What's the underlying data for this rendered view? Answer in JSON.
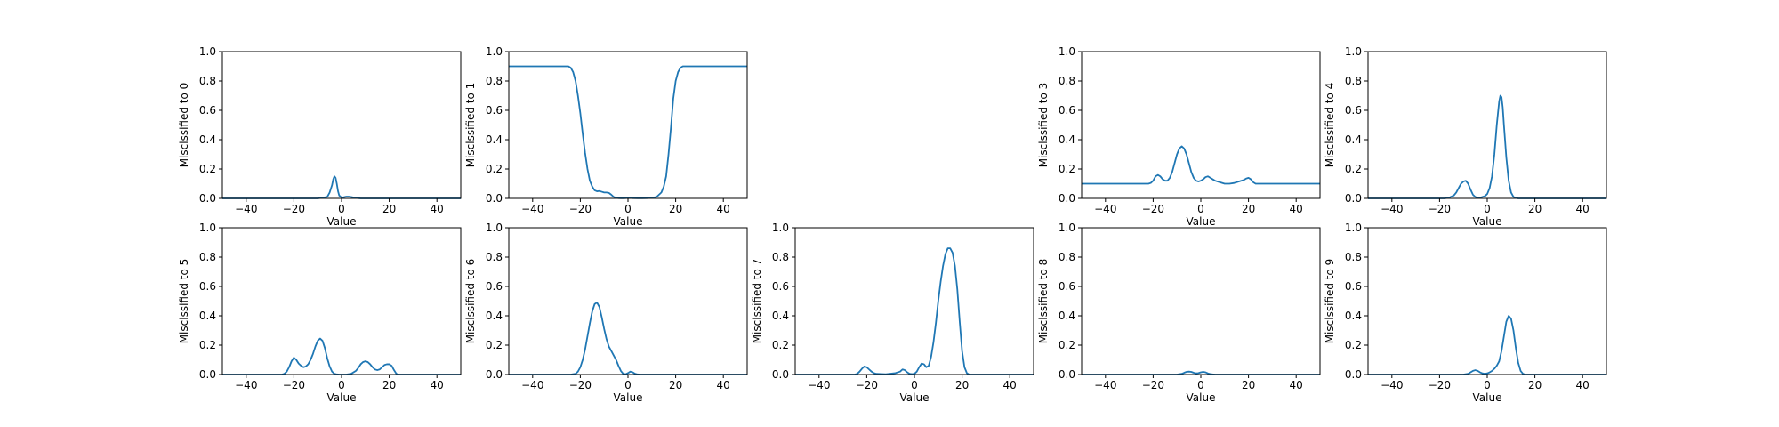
{
  "figure": {
    "background": "#ffffff",
    "line_color": "#1f77b4"
  },
  "chart_data": [
    {
      "type": "line",
      "xlabel": "Value",
      "ylabel": "Misclssified to 0",
      "xlim": [
        -50,
        50
      ],
      "ylim": [
        0,
        1
      ],
      "xticks": [
        -40,
        -20,
        0,
        20,
        40
      ],
      "xtick_labels": [
        "−40",
        "−20",
        "0",
        "20",
        "40"
      ],
      "yticks": [
        0,
        0.2,
        0.4,
        0.6,
        0.8,
        1.0
      ],
      "ytick_labels": [
        "0.0",
        "0.2",
        "0.4",
        "0.6",
        "0.8",
        "1.0"
      ],
      "series": [
        {
          "x": [
            -50,
            -10,
            -6,
            -5,
            -4,
            -3.5,
            -3,
            -2.5,
            -2,
            -1.5,
            -1,
            0,
            1,
            2,
            3,
            4,
            5,
            6,
            8,
            50
          ],
          "y": [
            0,
            0,
            0.01,
            0.04,
            0.09,
            0.13,
            0.15,
            0.14,
            0.1,
            0.05,
            0.02,
            0.005,
            0.008,
            0.012,
            0.012,
            0.01,
            0.006,
            0.003,
            0,
            0
          ]
        }
      ]
    },
    {
      "type": "line",
      "xlabel": "Value",
      "ylabel": "Misclssified to 1",
      "xlim": [
        -50,
        50
      ],
      "ylim": [
        0,
        1
      ],
      "xticks": [
        -40,
        -20,
        0,
        20,
        40
      ],
      "xtick_labels": [
        "−40",
        "−20",
        "0",
        "20",
        "40"
      ],
      "yticks": [
        0,
        0.2,
        0.4,
        0.6,
        0.8,
        1.0
      ],
      "ytick_labels": [
        "0.0",
        "0.2",
        "0.4",
        "0.6",
        "0.8",
        "1.0"
      ],
      "series": [
        {
          "x": [
            -50,
            -25,
            -24,
            -23,
            -22,
            -21,
            -20,
            -19,
            -18,
            -17,
            -16,
            -15,
            -14,
            -13,
            -12,
            -11,
            -10,
            -9,
            -8,
            -7,
            -6,
            -5,
            -4,
            -3,
            -2,
            -1,
            0,
            2,
            4,
            6,
            8,
            10,
            12,
            14,
            15,
            16,
            17,
            18,
            19,
            20,
            21,
            22,
            23,
            24,
            25,
            50
          ],
          "y": [
            0.9,
            0.9,
            0.89,
            0.86,
            0.8,
            0.7,
            0.58,
            0.44,
            0.31,
            0.2,
            0.12,
            0.08,
            0.055,
            0.048,
            0.05,
            0.045,
            0.04,
            0.04,
            0.037,
            0.025,
            0.01,
            0.004,
            0.002,
            0.001,
            0.001,
            0.002,
            0.004,
            0.002,
            0.001,
            0.001,
            0.002,
            0.004,
            0.01,
            0.04,
            0.08,
            0.15,
            0.3,
            0.48,
            0.68,
            0.8,
            0.86,
            0.89,
            0.9,
            0.9,
            0.9,
            0.9
          ]
        }
      ]
    },
    null,
    {
      "type": "line",
      "xlabel": "Value",
      "ylabel": "Misclssified to 3",
      "xlim": [
        -50,
        50
      ],
      "ylim": [
        0,
        1
      ],
      "xticks": [
        -40,
        -20,
        0,
        20,
        40
      ],
      "xtick_labels": [
        "−40",
        "−20",
        "0",
        "20",
        "40"
      ],
      "yticks": [
        0,
        0.2,
        0.4,
        0.6,
        0.8,
        1.0
      ],
      "ytick_labels": [
        "0.0",
        "0.2",
        "0.4",
        "0.6",
        "0.8",
        "1.0"
      ],
      "series": [
        {
          "x": [
            -50,
            -22,
            -21,
            -20,
            -19,
            -18,
            -17,
            -16,
            -15,
            -14,
            -13,
            -12,
            -11,
            -10,
            -9,
            -8,
            -7,
            -6,
            -5,
            -4,
            -3,
            -2,
            -1,
            0,
            1,
            2,
            3,
            4,
            5,
            6,
            8,
            10,
            12,
            14,
            16,
            18,
            19,
            20,
            21,
            22,
            23,
            50
          ],
          "y": [
            0.1,
            0.1,
            0.105,
            0.12,
            0.15,
            0.16,
            0.15,
            0.13,
            0.12,
            0.12,
            0.14,
            0.18,
            0.24,
            0.3,
            0.34,
            0.355,
            0.34,
            0.3,
            0.24,
            0.18,
            0.14,
            0.12,
            0.115,
            0.12,
            0.13,
            0.145,
            0.15,
            0.14,
            0.13,
            0.12,
            0.11,
            0.1,
            0.1,
            0.105,
            0.115,
            0.125,
            0.135,
            0.14,
            0.13,
            0.11,
            0.1,
            0.1
          ]
        }
      ]
    },
    {
      "type": "line",
      "xlabel": "Value",
      "ylabel": "Misclssified to 4",
      "xlim": [
        -50,
        50
      ],
      "ylim": [
        0,
        1
      ],
      "xticks": [
        -40,
        -20,
        0,
        20,
        40
      ],
      "xtick_labels": [
        "−40",
        "−20",
        "0",
        "20",
        "40"
      ],
      "yticks": [
        0,
        0.2,
        0.4,
        0.6,
        0.8,
        1.0
      ],
      "ytick_labels": [
        "0.0",
        "0.2",
        "0.4",
        "0.6",
        "0.8",
        "1.0"
      ],
      "series": [
        {
          "x": [
            -50,
            -18,
            -16,
            -14,
            -13,
            -12,
            -11,
            -10,
            -9,
            -8,
            -7,
            -6,
            -5,
            -4,
            -3,
            -2,
            -1,
            0,
            1,
            2,
            3,
            4,
            5,
            5.5,
            6,
            6.5,
            7,
            8,
            9,
            10,
            11,
            12,
            13,
            50
          ],
          "y": [
            0,
            0,
            0.005,
            0.02,
            0.04,
            0.07,
            0.1,
            0.115,
            0.12,
            0.1,
            0.06,
            0.025,
            0.01,
            0.005,
            0.005,
            0.01,
            0.015,
            0.03,
            0.07,
            0.15,
            0.3,
            0.5,
            0.66,
            0.7,
            0.69,
            0.62,
            0.5,
            0.28,
            0.12,
            0.04,
            0.01,
            0.003,
            0,
            0
          ]
        }
      ]
    },
    {
      "type": "line",
      "xlabel": "Value",
      "ylabel": "Misclssified to 5",
      "xlim": [
        -50,
        50
      ],
      "ylim": [
        0,
        1
      ],
      "xticks": [
        -40,
        -20,
        0,
        20,
        40
      ],
      "xtick_labels": [
        "−40",
        "−20",
        "0",
        "20",
        "40"
      ],
      "yticks": [
        0,
        0.2,
        0.4,
        0.6,
        0.8,
        1.0
      ],
      "ytick_labels": [
        "0.0",
        "0.2",
        "0.4",
        "0.6",
        "0.8",
        "1.0"
      ],
      "series": [
        {
          "x": [
            -50,
            -25,
            -24,
            -23,
            -22,
            -21,
            -20,
            -19,
            -18,
            -17,
            -16,
            -15,
            -14,
            -13,
            -12,
            -11,
            -10,
            -9,
            -8,
            -7,
            -6,
            -5,
            -4,
            -3,
            -2,
            -1,
            0,
            2,
            4,
            6,
            7,
            8,
            9,
            10,
            11,
            12,
            13,
            14,
            15,
            16,
            17,
            18,
            19,
            20,
            21,
            22,
            23,
            24,
            50
          ],
          "y": [
            0,
            0,
            0.005,
            0.02,
            0.05,
            0.09,
            0.115,
            0.1,
            0.075,
            0.06,
            0.05,
            0.055,
            0.07,
            0.1,
            0.14,
            0.19,
            0.23,
            0.245,
            0.23,
            0.18,
            0.11,
            0.055,
            0.02,
            0.005,
            0.001,
            0,
            0,
            0,
            0.005,
            0.025,
            0.045,
            0.07,
            0.085,
            0.09,
            0.085,
            0.07,
            0.05,
            0.035,
            0.03,
            0.035,
            0.05,
            0.065,
            0.07,
            0.07,
            0.06,
            0.03,
            0.005,
            0,
            0
          ]
        }
      ]
    },
    {
      "type": "line",
      "xlabel": "Value",
      "ylabel": "Misclssified to 6",
      "xlim": [
        -50,
        50
      ],
      "ylim": [
        0,
        1
      ],
      "xticks": [
        -40,
        -20,
        0,
        20,
        40
      ],
      "xtick_labels": [
        "−40",
        "−20",
        "0",
        "20",
        "40"
      ],
      "yticks": [
        0,
        0.2,
        0.4,
        0.6,
        0.8,
        1.0
      ],
      "ytick_labels": [
        "0.0",
        "0.2",
        "0.4",
        "0.6",
        "0.8",
        "1.0"
      ],
      "series": [
        {
          "x": [
            -50,
            -24,
            -22,
            -21,
            -20,
            -19,
            -18,
            -17,
            -16,
            -15,
            -14,
            -13,
            -12,
            -11,
            -10,
            -9,
            -8,
            -7,
            -6,
            -5,
            -4,
            -3,
            -2,
            -1,
            0,
            1,
            2,
            3,
            4,
            5,
            50
          ],
          "y": [
            0,
            0,
            0.005,
            0.02,
            0.05,
            0.1,
            0.17,
            0.26,
            0.35,
            0.43,
            0.48,
            0.49,
            0.46,
            0.39,
            0.31,
            0.24,
            0.19,
            0.16,
            0.13,
            0.1,
            0.06,
            0.025,
            0.005,
            0.002,
            0.01,
            0.02,
            0.015,
            0.005,
            0.001,
            0,
            0
          ]
        }
      ]
    },
    {
      "type": "line",
      "xlabel": "Value",
      "ylabel": "Misclssified to 7",
      "xlim": [
        -50,
        50
      ],
      "ylim": [
        0,
        1
      ],
      "xticks": [
        -40,
        -20,
        0,
        20,
        40
      ],
      "xtick_labels": [
        "−40",
        "−20",
        "0",
        "20",
        "40"
      ],
      "yticks": [
        0,
        0.2,
        0.4,
        0.6,
        0.8,
        1.0
      ],
      "ytick_labels": [
        "0.0",
        "0.2",
        "0.4",
        "0.6",
        "0.8",
        "1.0"
      ],
      "series": [
        {
          "x": [
            -50,
            -25,
            -24,
            -23,
            -22,
            -21,
            -20,
            -19,
            -18,
            -17,
            -16,
            -12,
            -8,
            -6,
            -5,
            -4,
            -3,
            -2,
            -1,
            0,
            1,
            2,
            3,
            4,
            5,
            6,
            7,
            8,
            9,
            10,
            11,
            12,
            13,
            14,
            15,
            16,
            17,
            18,
            19,
            20,
            21,
            22,
            23,
            50
          ],
          "y": [
            0,
            0,
            0.005,
            0.02,
            0.04,
            0.055,
            0.05,
            0.035,
            0.02,
            0.01,
            0.005,
            0.002,
            0.01,
            0.02,
            0.035,
            0.03,
            0.015,
            0.005,
            0.003,
            0.005,
            0.02,
            0.05,
            0.075,
            0.07,
            0.05,
            0.06,
            0.12,
            0.22,
            0.35,
            0.5,
            0.63,
            0.74,
            0.82,
            0.86,
            0.86,
            0.83,
            0.74,
            0.58,
            0.36,
            0.16,
            0.05,
            0.01,
            0,
            0
          ]
        }
      ]
    },
    {
      "type": "line",
      "xlabel": "Value",
      "ylabel": "Misclssified to 8",
      "xlim": [
        -50,
        50
      ],
      "ylim": [
        0,
        1
      ],
      "xticks": [
        -40,
        -20,
        0,
        20,
        40
      ],
      "xtick_labels": [
        "−40",
        "−20",
        "0",
        "20",
        "40"
      ],
      "yticks": [
        0,
        0.2,
        0.4,
        0.6,
        0.8,
        1.0
      ],
      "ytick_labels": [
        "0.0",
        "0.2",
        "0.4",
        "0.6",
        "0.8",
        "1.0"
      ],
      "series": [
        {
          "x": [
            -50,
            -10,
            -8,
            -7,
            -6,
            -5,
            -4,
            -3,
            -2,
            -1,
            0,
            1,
            2,
            3,
            4,
            5,
            6,
            50
          ],
          "y": [
            0,
            0,
            0.005,
            0.012,
            0.018,
            0.02,
            0.018,
            0.012,
            0.008,
            0.01,
            0.015,
            0.018,
            0.015,
            0.008,
            0.003,
            0.001,
            0,
            0
          ]
        }
      ]
    },
    {
      "type": "line",
      "xlabel": "Value",
      "ylabel": "Misclssified to 9",
      "xlim": [
        -50,
        50
      ],
      "ylim": [
        0,
        1
      ],
      "xticks": [
        -40,
        -20,
        0,
        20,
        40
      ],
      "xtick_labels": [
        "−40",
        "−20",
        "0",
        "20",
        "40"
      ],
      "yticks": [
        0,
        0.2,
        0.4,
        0.6,
        0.8,
        1.0
      ],
      "ytick_labels": [
        "0.0",
        "0.2",
        "0.4",
        "0.6",
        "0.8",
        "1.0"
      ],
      "series": [
        {
          "x": [
            -50,
            -10,
            -8,
            -7,
            -6,
            -5,
            -4,
            -3,
            -2,
            -1,
            0,
            1,
            2,
            3,
            4,
            5,
            6,
            7,
            8,
            9,
            10,
            11,
            12,
            13,
            14,
            15,
            16,
            50
          ],
          "y": [
            0,
            0,
            0.005,
            0.015,
            0.025,
            0.03,
            0.025,
            0.015,
            0.008,
            0.005,
            0.008,
            0.015,
            0.025,
            0.04,
            0.06,
            0.09,
            0.16,
            0.26,
            0.36,
            0.4,
            0.38,
            0.3,
            0.18,
            0.08,
            0.025,
            0.005,
            0,
            0
          ]
        }
      ]
    }
  ]
}
